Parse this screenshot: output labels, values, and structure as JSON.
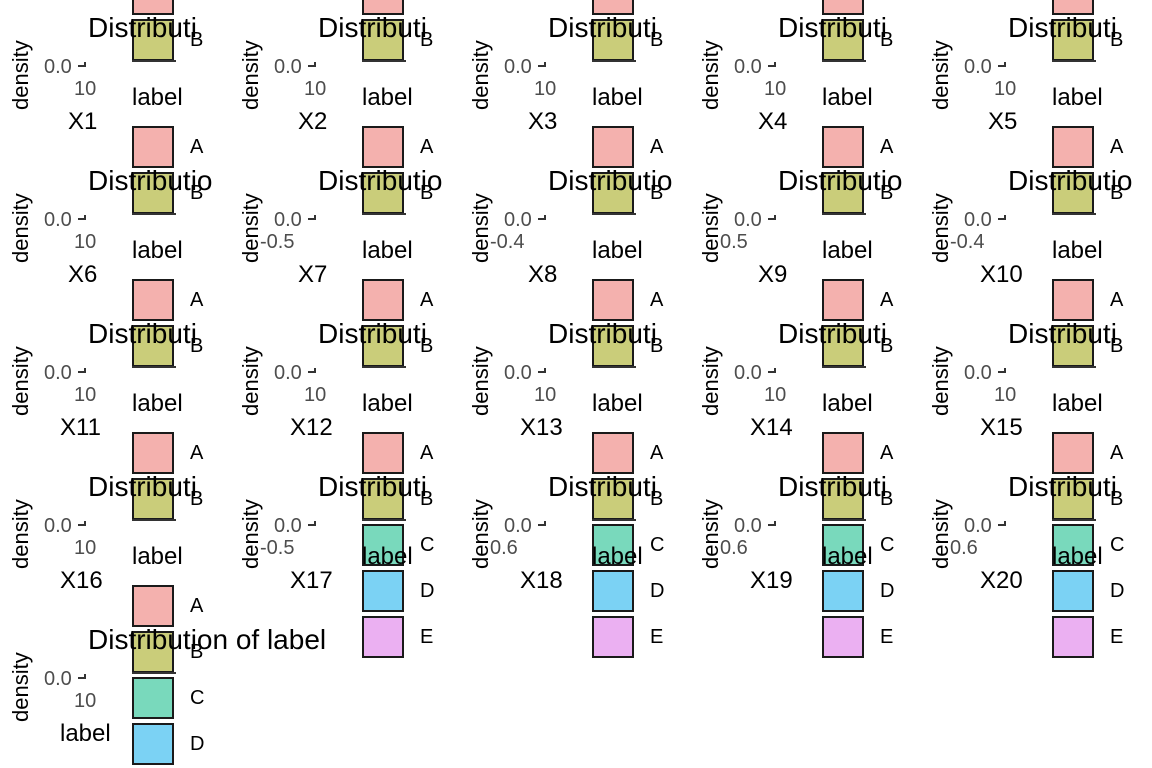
{
  "colors": {
    "A": "#F4B1AE",
    "B": "#CACD7A",
    "C": "#79D9BC",
    "D": "#7BD2F4",
    "E": "#EBB0F2"
  },
  "panel_text": {
    "ylabel": "density",
    "title_short": "Distributi",
    "title_mid": "Distributio",
    "title_full": "Distribution of label",
    "legend_title": "label"
  },
  "chart_data": [
    {
      "type": "area",
      "title": "Distributi",
      "xlabel": "X1",
      "ylabel": "density",
      "legend_title": "label",
      "legend": [
        "A",
        "B"
      ]
    },
    {
      "type": "area",
      "title": "Distributi",
      "xlabel": "X2",
      "ylabel": "density",
      "legend_title": "label",
      "legend": [
        "A",
        "B"
      ]
    },
    {
      "type": "area",
      "title": "Distributi",
      "xlabel": "X3",
      "ylabel": "density",
      "legend_title": "label",
      "legend": [
        "A",
        "B"
      ]
    },
    {
      "type": "area",
      "title": "Distributi",
      "xlabel": "X4",
      "ylabel": "density",
      "legend_title": "label",
      "legend": [
        "A",
        "B"
      ]
    },
    {
      "type": "area",
      "title": "Distributi",
      "xlabel": "X5",
      "ylabel": "density",
      "legend_title": "label",
      "legend": [
        "A",
        "B"
      ]
    },
    {
      "type": "area",
      "title": "Distributio",
      "xlabel": "X6",
      "ylabel": "density",
      "legend_title": "label",
      "legend": [
        "A",
        "B"
      ]
    },
    {
      "type": "area",
      "title": "Distributio",
      "xlabel": "X7",
      "ylabel": "density",
      "legend_title": "label",
      "legend": [
        "A",
        "B"
      ],
      "xticks": [
        "-0.5"
      ]
    },
    {
      "type": "area",
      "title": "Distributio",
      "xlabel": "X8",
      "ylabel": "density",
      "legend_title": "label",
      "legend": [
        "A",
        "B"
      ],
      "xticks": [
        "-0.4"
      ]
    },
    {
      "type": "area",
      "title": "Distributio",
      "xlabel": "X9",
      "ylabel": "density",
      "legend_title": "label",
      "legend": [
        "A",
        "B"
      ],
      "xticks": [
        "0.5"
      ]
    },
    {
      "type": "area",
      "title": "Distributio",
      "xlabel": "X10",
      "ylabel": "density",
      "legend_title": "label",
      "legend": [
        "A",
        "B"
      ],
      "xticks": [
        "-0.4"
      ]
    },
    {
      "type": "area",
      "title": "Distributi",
      "xlabel": "X11",
      "ylabel": "density",
      "legend_title": "label",
      "legend": [
        "A",
        "B"
      ]
    },
    {
      "type": "area",
      "title": "Distributi",
      "xlabel": "X12",
      "ylabel": "density",
      "legend_title": "label",
      "legend": [
        "A",
        "B"
      ]
    },
    {
      "type": "area",
      "title": "Distributi",
      "xlabel": "X13",
      "ylabel": "density",
      "legend_title": "label",
      "legend": [
        "A",
        "B"
      ]
    },
    {
      "type": "area",
      "title": "Distributi",
      "xlabel": "X14",
      "ylabel": "density",
      "legend_title": "label",
      "legend": [
        "A",
        "B"
      ]
    },
    {
      "type": "area",
      "title": "Distributi",
      "xlabel": "X15",
      "ylabel": "density",
      "legend_title": "label",
      "legend": [
        "A",
        "B"
      ]
    },
    {
      "type": "area",
      "title": "Distributi",
      "xlabel": "X16",
      "ylabel": "density",
      "legend_title": "label",
      "legend": [
        "A",
        "B"
      ]
    },
    {
      "type": "area",
      "title": "Distributi",
      "xlabel": "X17",
      "ylabel": "density",
      "legend_title": "label",
      "legend": [
        "A",
        "B",
        "C",
        "D",
        "E"
      ],
      "xticks": [
        "-0.5"
      ]
    },
    {
      "type": "area",
      "title": "Distributi",
      "xlabel": "X18",
      "ylabel": "density",
      "legend_title": "label",
      "legend": [
        "A",
        "B",
        "C",
        "D",
        "E"
      ],
      "xticks": [
        "0.6"
      ]
    },
    {
      "type": "area",
      "title": "Distributi",
      "xlabel": "X19",
      "ylabel": "density",
      "legend_title": "label",
      "legend": [
        "A",
        "B",
        "C",
        "D",
        "E"
      ],
      "xticks": [
        "0.6"
      ]
    },
    {
      "type": "area",
      "title": "Distributi",
      "xlabel": "X20",
      "ylabel": "density",
      "legend_title": "label",
      "legend": [
        "A",
        "B",
        "C",
        "D",
        "E"
      ],
      "xticks": [
        "0.6"
      ]
    },
    {
      "type": "area",
      "title": "Distribution of label",
      "xlabel": "label",
      "ylabel": "density",
      "legend_title": "",
      "legend": [
        "A",
        "B",
        "C",
        "D"
      ]
    }
  ]
}
